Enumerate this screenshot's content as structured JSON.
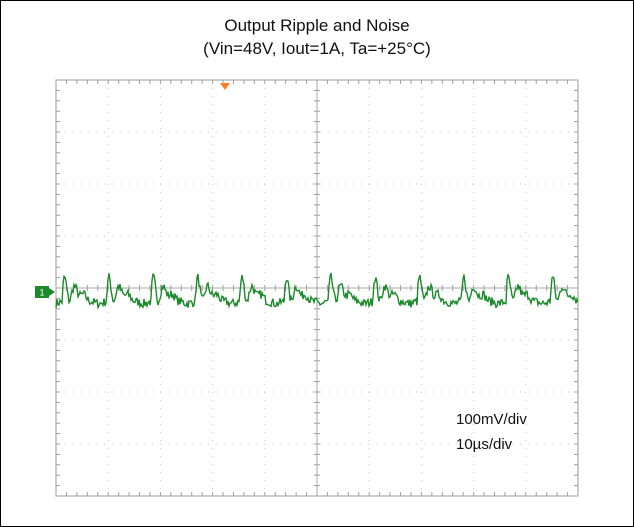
{
  "chart_data": {
    "type": "line",
    "title": "Output Ripple and Noise",
    "subtitle": "(Vin=48V, Iout=1A, Ta=+25°C)",
    "grid": true,
    "divisions": {
      "x": 10,
      "y": 8
    },
    "ylim_div": [
      -4,
      4
    ],
    "xlim_div": [
      0,
      10
    ],
    "scale": {
      "vertical": "100mV/div",
      "horizontal": "10µs/div"
    },
    "series": [
      {
        "color": "#1a8a2a",
        "period_div": 0.85,
        "ripple_mv_pk_pk": 60,
        "baseline_div": 0
      }
    ]
  },
  "colors": {
    "trace": "#1a8a2a",
    "grid": "#c8c8c8",
    "marker": "#1a8a2a",
    "trigger": "#ff7f27"
  },
  "icons": {
    "channel_marker": "channel-1-marker-icon",
    "trigger_marker": "trigger-marker-icon"
  }
}
